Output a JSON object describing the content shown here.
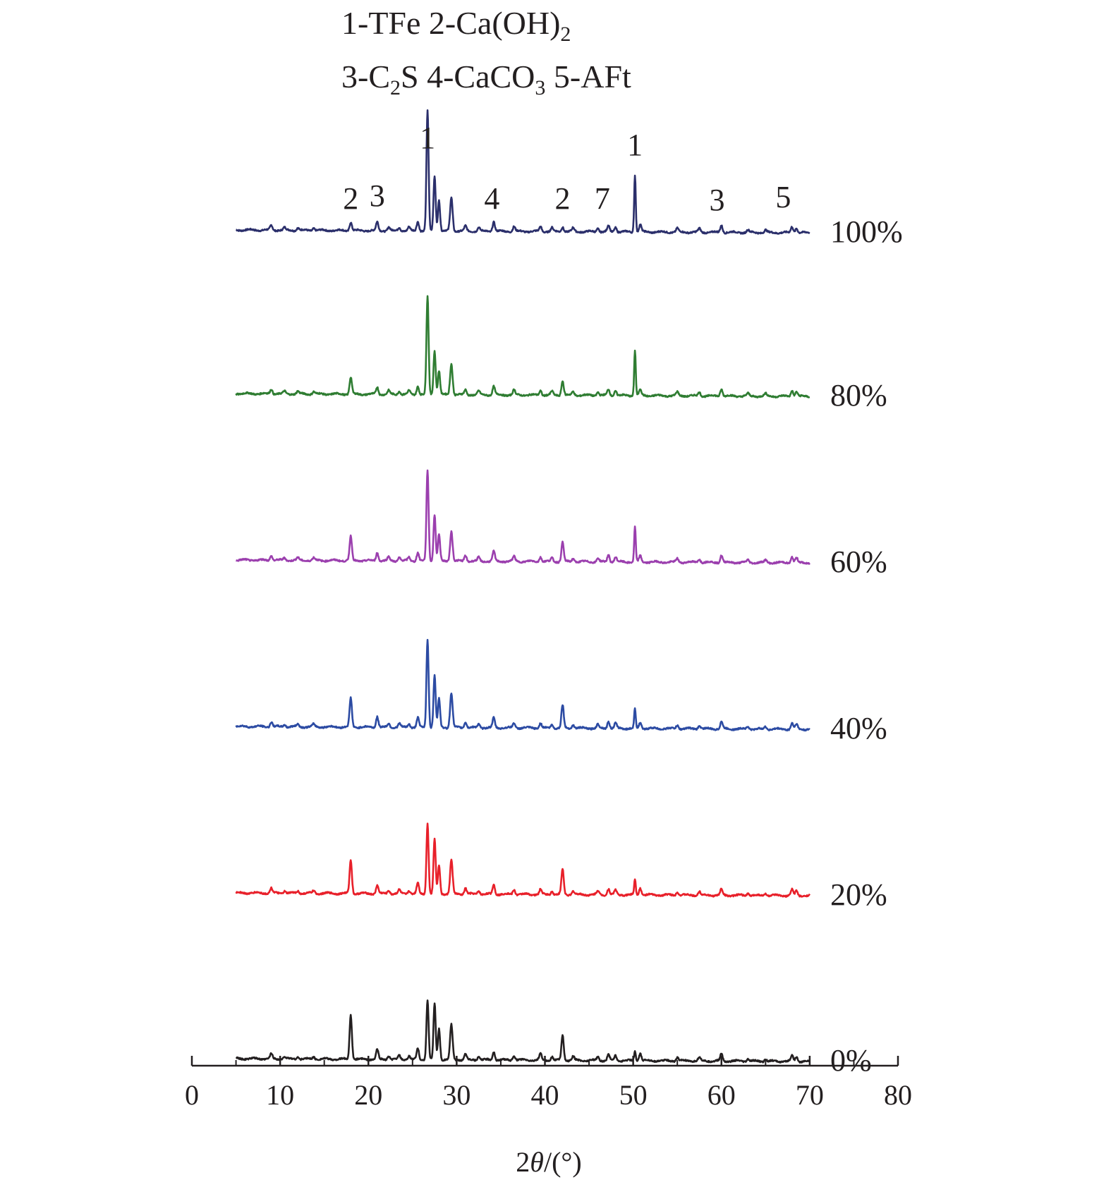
{
  "chart_data": {
    "type": "line",
    "xlabel": "2θ/(°)",
    "xlim": [
      0,
      80
    ],
    "x_ticks": [
      0,
      10,
      20,
      30,
      40,
      50,
      60,
      70,
      80
    ],
    "x_range_data": [
      5,
      70
    ],
    "legend_lines": [
      "1-TFe 2-Ca(OH)2",
      "3-C2S 4-CaCO3 5-AFt"
    ],
    "peak_annotations": [
      {
        "label": "2",
        "x": 18.0
      },
      {
        "label": "3",
        "x": 21.0
      },
      {
        "label": "1",
        "x": 26.7
      },
      {
        "label": "4",
        "x": 34.0
      },
      {
        "label": "2",
        "x": 42.0
      },
      {
        "label": "7",
        "x": 46.5
      },
      {
        "label": "1",
        "x": 50.2
      },
      {
        "label": "3",
        "x": 59.5
      },
      {
        "label": "5",
        "x": 67.0
      }
    ],
    "peak_positions": [
      9.0,
      10.5,
      12.0,
      13.8,
      18.0,
      21.0,
      22.3,
      23.5,
      24.6,
      25.6,
      26.7,
      27.5,
      28.0,
      29.4,
      31.0,
      32.5,
      34.2,
      36.5,
      39.5,
      40.8,
      42.0,
      43.2,
      46.0,
      47.2,
      48.0,
      50.2,
      50.8,
      55.0,
      57.5,
      60.0,
      63.0,
      65.0,
      68.0,
      68.5
    ],
    "series": [
      {
        "name": "100%",
        "color": "#2b2f6b",
        "intensities": [
          0.04,
          0.02,
          0.02,
          0.02,
          0.07,
          0.07,
          0.03,
          0.03,
          0.03,
          0.08,
          1.0,
          0.46,
          0.26,
          0.28,
          0.04,
          0.03,
          0.08,
          0.04,
          0.04,
          0.03,
          0.04,
          0.03,
          0.03,
          0.05,
          0.04,
          0.48,
          0.06,
          0.03,
          0.03,
          0.06,
          0.02,
          0.02,
          0.05,
          0.04
        ]
      },
      {
        "name": "80%",
        "color": "#2f7d32",
        "intensities": [
          0.04,
          0.02,
          0.02,
          0.02,
          0.14,
          0.06,
          0.03,
          0.03,
          0.03,
          0.07,
          0.82,
          0.37,
          0.2,
          0.26,
          0.04,
          0.03,
          0.07,
          0.04,
          0.04,
          0.03,
          0.12,
          0.03,
          0.03,
          0.05,
          0.04,
          0.38,
          0.05,
          0.03,
          0.03,
          0.06,
          0.02,
          0.02,
          0.05,
          0.04
        ]
      },
      {
        "name": "60%",
        "color": "#9b3fae",
        "intensities": [
          0.04,
          0.02,
          0.02,
          0.02,
          0.2,
          0.07,
          0.03,
          0.03,
          0.03,
          0.07,
          0.76,
          0.39,
          0.22,
          0.25,
          0.05,
          0.03,
          0.08,
          0.04,
          0.04,
          0.03,
          0.16,
          0.03,
          0.03,
          0.06,
          0.04,
          0.29,
          0.05,
          0.03,
          0.03,
          0.06,
          0.02,
          0.02,
          0.05,
          0.04
        ]
      },
      {
        "name": "40%",
        "color": "#2c4ba3",
        "intensities": [
          0.04,
          0.02,
          0.02,
          0.02,
          0.24,
          0.09,
          0.03,
          0.03,
          0.03,
          0.08,
          0.74,
          0.44,
          0.24,
          0.29,
          0.05,
          0.03,
          0.08,
          0.04,
          0.04,
          0.03,
          0.19,
          0.03,
          0.03,
          0.06,
          0.04,
          0.16,
          0.05,
          0.03,
          0.03,
          0.06,
          0.02,
          0.02,
          0.05,
          0.04
        ]
      },
      {
        "name": "20%",
        "color": "#e8202a",
        "intensities": [
          0.04,
          0.02,
          0.02,
          0.02,
          0.28,
          0.07,
          0.03,
          0.03,
          0.03,
          0.09,
          0.59,
          0.46,
          0.24,
          0.28,
          0.05,
          0.03,
          0.08,
          0.04,
          0.04,
          0.03,
          0.21,
          0.03,
          0.03,
          0.05,
          0.04,
          0.13,
          0.06,
          0.03,
          0.03,
          0.05,
          0.02,
          0.02,
          0.05,
          0.04
        ]
      },
      {
        "name": "0%",
        "color": "#231f20",
        "intensities": [
          0.04,
          0.02,
          0.02,
          0.02,
          0.37,
          0.08,
          0.03,
          0.03,
          0.03,
          0.09,
          0.5,
          0.47,
          0.26,
          0.29,
          0.05,
          0.03,
          0.07,
          0.04,
          0.05,
          0.03,
          0.21,
          0.03,
          0.03,
          0.05,
          0.04,
          0.08,
          0.06,
          0.03,
          0.03,
          0.06,
          0.02,
          0.02,
          0.05,
          0.04
        ]
      }
    ]
  }
}
